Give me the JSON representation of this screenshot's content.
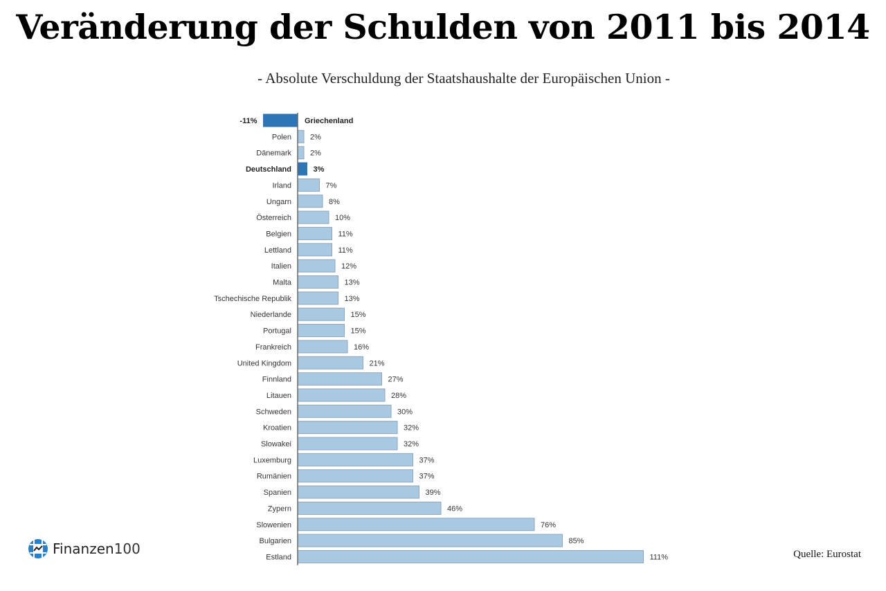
{
  "header": {
    "title": "Veränderung der Schulden von 2011 bis 2014",
    "subtitle": "- Absolute Verschuldung der Staatshaushalte der Europäischen Union -"
  },
  "footer": {
    "logo_name": "Finanzen",
    "logo_number": "100",
    "source": "Quelle: Eurostat"
  },
  "colors": {
    "highlight": "#2e75b6",
    "normal": "#a9c9e3",
    "bar_border": "#8fa6b8",
    "axis": "#666666"
  },
  "chart_data": {
    "type": "bar",
    "orientation": "horizontal",
    "title": "Veränderung der Schulden von 2011 bis 2014",
    "subtitle": "- Absolute Verschuldung der Staatshaushalte der Europäischen Union -",
    "unit": "%",
    "xlim": [
      -11,
      111
    ],
    "grid": false,
    "categories": [
      "Griechenland",
      "Polen",
      "Dänemark",
      "Deutschland",
      "Irland",
      "Ungarn",
      "Österreich",
      "Belgien",
      "Lettland",
      "Italien",
      "Malta",
      "Tschechische Republik",
      "Niederlande",
      "Portugal",
      "Frankreich",
      "United Kingdom",
      "Finnland",
      "Litauen",
      "Schweden",
      "Kroatien",
      "Slowakei",
      "Luxemburg",
      "Rumänien",
      "Spanien",
      "Zypern",
      "Slowenien",
      "Bulgarien",
      "Estland"
    ],
    "values": [
      -11,
      2,
      2,
      3,
      7,
      8,
      10,
      11,
      11,
      12,
      13,
      13,
      15,
      15,
      16,
      21,
      27,
      28,
      30,
      32,
      32,
      37,
      37,
      39,
      46,
      76,
      85,
      111
    ],
    "value_labels": [
      "-11%",
      "2%",
      "2%",
      "3%",
      "7%",
      "8%",
      "10%",
      "11%",
      "11%",
      "12%",
      "13%",
      "13%",
      "15%",
      "15%",
      "16%",
      "21%",
      "27%",
      "28%",
      "30%",
      "32%",
      "32%",
      "37%",
      "37%",
      "39%",
      "46%",
      "76%",
      "85%",
      "111%"
    ],
    "highlighted": [
      "Griechenland",
      "Deutschland"
    ]
  }
}
